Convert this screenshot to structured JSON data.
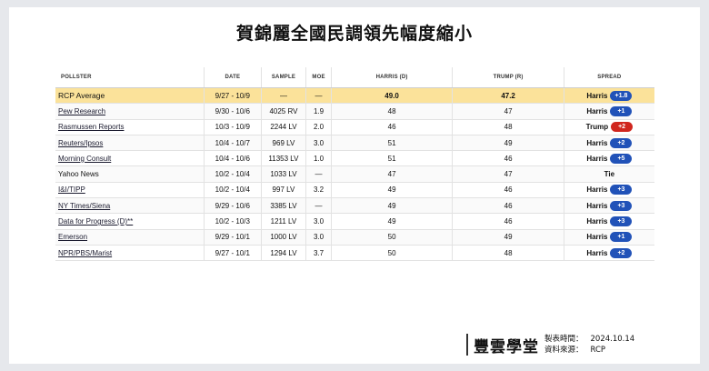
{
  "title": "賀錦麗全國民調領先幅度縮小",
  "table": {
    "headers": {
      "pollster": "Pollster",
      "date": "Date",
      "sample": "Sample",
      "moe": "MoE",
      "harris": "Harris (D)",
      "trump": "Trump (R)",
      "spread": "Spread"
    },
    "rows": [
      {
        "pollster": "RCP Average",
        "date": "9/27 - 10/9",
        "sample": "—",
        "moe": "—",
        "harris": "49.0",
        "trump": "47.2",
        "spread_name": "Harris",
        "spread_value": "+1.8",
        "spread_party": "harris",
        "is_average": true,
        "link": false
      },
      {
        "pollster": "Pew Research",
        "date": "9/30 - 10/6",
        "sample": "4025 RV",
        "moe": "1.9",
        "harris": "48",
        "trump": "47",
        "spread_name": "Harris",
        "spread_value": "+1",
        "spread_party": "harris",
        "link": true
      },
      {
        "pollster": "Rasmussen Reports",
        "date": "10/3 - 10/9",
        "sample": "2244 LV",
        "moe": "2.0",
        "harris": "46",
        "trump": "48",
        "spread_name": "Trump",
        "spread_value": "+2",
        "spread_party": "trump",
        "link": true
      },
      {
        "pollster": "Reuters/Ipsos",
        "date": "10/4 - 10/7",
        "sample": "969 LV",
        "moe": "3.0",
        "harris": "51",
        "trump": "49",
        "spread_name": "Harris",
        "spread_value": "+2",
        "spread_party": "harris",
        "link": true
      },
      {
        "pollster": "Morning Consult",
        "date": "10/4 - 10/6",
        "sample": "11353 LV",
        "moe": "1.0",
        "harris": "51",
        "trump": "46",
        "spread_name": "Harris",
        "spread_value": "+5",
        "spread_party": "harris",
        "link": true
      },
      {
        "pollster": "Yahoo News",
        "date": "10/2 - 10/4",
        "sample": "1033 LV",
        "moe": "—",
        "harris": "47",
        "trump": "47",
        "spread_name": "Tie",
        "spread_value": "",
        "spread_party": "tie",
        "link": false
      },
      {
        "pollster": "I&I/TIPP",
        "date": "10/2 - 10/4",
        "sample": "997 LV",
        "moe": "3.2",
        "harris": "49",
        "trump": "46",
        "spread_name": "Harris",
        "spread_value": "+3",
        "spread_party": "harris",
        "link": true
      },
      {
        "pollster": "NY Times/Siena",
        "date": "9/29 - 10/6",
        "sample": "3385 LV",
        "moe": "—",
        "harris": "49",
        "trump": "46",
        "spread_name": "Harris",
        "spread_value": "+3",
        "spread_party": "harris",
        "link": true
      },
      {
        "pollster": "Data for Progress (D)**",
        "date": "10/2 - 10/3",
        "sample": "1211 LV",
        "moe": "3.0",
        "harris": "49",
        "trump": "46",
        "spread_name": "Harris",
        "spread_value": "+3",
        "spread_party": "harris",
        "link": true
      },
      {
        "pollster": "Emerson",
        "date": "9/29 - 10/1",
        "sample": "1000 LV",
        "moe": "3.0",
        "harris": "50",
        "trump": "49",
        "spread_name": "Harris",
        "spread_value": "+1",
        "spread_party": "harris",
        "link": true
      },
      {
        "pollster": "NPR/PBS/Marist",
        "date": "9/27 - 10/1",
        "sample": "1294 LV",
        "moe": "3.7",
        "harris": "50",
        "trump": "48",
        "spread_name": "Harris",
        "spread_value": "+2",
        "spread_party": "harris",
        "link": true
      }
    ]
  },
  "footer": {
    "logo": "豐雲學堂",
    "made_label": "製表時間：",
    "made_value": "2024.10.14",
    "source_label": "資料來源：",
    "source_value": "RCP"
  },
  "colors": {
    "average_row": "#fbe29a",
    "harris_badge": "#2152b8",
    "trump_badge": "#d0261e"
  }
}
